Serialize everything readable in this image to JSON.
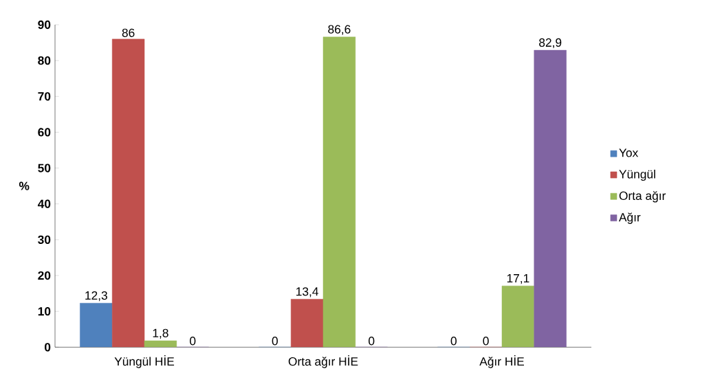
{
  "chart_data": {
    "type": "bar",
    "ylabel": "%",
    "categories": [
      "Yüngül HİE",
      "Orta ağır HİE",
      "Ağır HİE"
    ],
    "series": [
      {
        "name": "Yox",
        "color": "#4f81bd",
        "values": [
          12.3,
          0,
          0
        ],
        "value_labels": [
          "12,3",
          "0",
          "0"
        ]
      },
      {
        "name": "Yüngül",
        "color": "#c0504d",
        "values": [
          86,
          13.4,
          0
        ],
        "value_labels": [
          "86",
          "13,4",
          "0"
        ]
      },
      {
        "name": "Orta ağır",
        "color": "#9bbb59",
        "values": [
          1.8,
          86.6,
          17.1
        ],
        "value_labels": [
          "1,8",
          "86,6",
          "17,1"
        ]
      },
      {
        "name": "Ağır",
        "color": "#8064a2",
        "values": [
          0,
          0,
          82.9
        ],
        "value_labels": [
          "0",
          "0",
          "82,9"
        ]
      }
    ],
    "ylim": [
      0,
      90
    ],
    "yticks": [
      0,
      10,
      20,
      30,
      40,
      50,
      60,
      70,
      80,
      90
    ],
    "grid": false,
    "legend": "right"
  }
}
